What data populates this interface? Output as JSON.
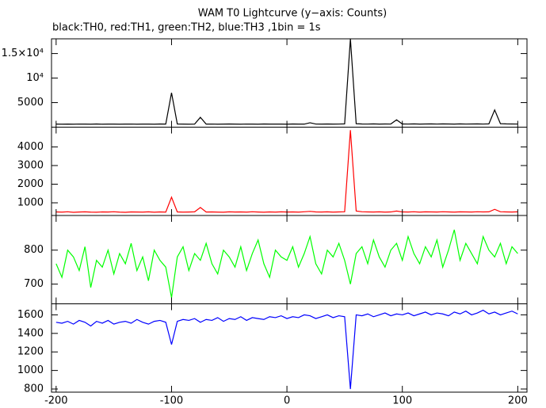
{
  "chart_data": [
    {
      "type": "line",
      "title": "WAM T0 Lightcurve (y−axis: Counts)",
      "subtitle": "black:TH0, red:TH1, green:TH2, blue:TH3 ,1bin = 1s",
      "x": [
        -200,
        -195,
        -190,
        -185,
        -180,
        -175,
        -170,
        -165,
        -160,
        -155,
        -150,
        -145,
        -140,
        -135,
        -130,
        -125,
        -120,
        -115,
        -110,
        -105,
        -100,
        -95,
        -90,
        -85,
        -80,
        -75,
        -70,
        -65,
        -60,
        -55,
        -50,
        -45,
        -40,
        -35,
        -30,
        -25,
        -20,
        -15,
        -10,
        -5,
        0,
        5,
        10,
        15,
        20,
        25,
        30,
        35,
        40,
        45,
        50,
        55,
        60,
        65,
        70,
        75,
        80,
        85,
        90,
        95,
        100,
        105,
        110,
        115,
        120,
        125,
        130,
        135,
        140,
        145,
        150,
        155,
        160,
        165,
        170,
        175,
        180,
        185,
        190,
        195,
        200
      ],
      "color": "#000000",
      "values": [
        620,
        610,
        630,
        600,
        640,
        620,
        610,
        650,
        600,
        620,
        630,
        610,
        620,
        640,
        600,
        630,
        620,
        610,
        650,
        630,
        7000,
        640,
        620,
        610,
        630,
        2000,
        620,
        640,
        610,
        630,
        650,
        620,
        600,
        640,
        630,
        610,
        650,
        620,
        640,
        630,
        610,
        650,
        630,
        620,
        900,
        640,
        630,
        650,
        620,
        640,
        660,
        18000,
        700,
        650,
        640,
        660,
        630,
        650,
        640,
        1500,
        650,
        640,
        660,
        630,
        650,
        670,
        640,
        660,
        650,
        630,
        660,
        640,
        650,
        670,
        640,
        660,
        3500,
        700,
        660,
        650,
        640
      ],
      "ylim": [
        0,
        18000
      ],
      "yticks": [
        {
          "value": 5000,
          "label": "5000"
        },
        {
          "value": 10000,
          "label": "10⁴"
        },
        {
          "value": 15000,
          "label": "1.5×10⁴"
        }
      ]
    },
    {
      "type": "line",
      "color": "#ff0000",
      "values": [
        510,
        500,
        520,
        490,
        505,
        515,
        500,
        495,
        510,
        505,
        520,
        500,
        490,
        510,
        505,
        500,
        515,
        495,
        510,
        500,
        1300,
        510,
        500,
        505,
        515,
        750,
        505,
        510,
        500,
        495,
        515,
        505,
        510,
        500,
        520,
        505,
        495,
        510,
        500,
        515,
        505,
        510,
        500,
        520,
        540,
        510,
        505,
        515,
        500,
        510,
        520,
        4900,
        560,
        520,
        510,
        505,
        515,
        500,
        510,
        560,
        510,
        505,
        520,
        500,
        515,
        510,
        505,
        520,
        510,
        500,
        515,
        510,
        505,
        520,
        510,
        515,
        650,
        520,
        510,
        505,
        515
      ],
      "ylim": [
        320,
        5060
      ],
      "yticks": [
        1000,
        2000,
        3000,
        4000
      ]
    },
    {
      "type": "line",
      "color": "#00ff00",
      "values": [
        760,
        720,
        800,
        780,
        740,
        810,
        690,
        770,
        750,
        800,
        730,
        790,
        760,
        820,
        740,
        780,
        710,
        800,
        770,
        750,
        660,
        780,
        810,
        740,
        790,
        770,
        820,
        760,
        730,
        800,
        780,
        750,
        810,
        740,
        790,
        830,
        760,
        720,
        800,
        780,
        770,
        810,
        750,
        790,
        840,
        760,
        730,
        800,
        780,
        820,
        770,
        700,
        790,
        810,
        760,
        830,
        780,
        750,
        800,
        820,
        770,
        840,
        790,
        760,
        810,
        780,
        830,
        750,
        800,
        860,
        770,
        820,
        790,
        760,
        840,
        800,
        780,
        820,
        760,
        810,
        790
      ],
      "ylim": [
        642,
        902
      ],
      "yticks": [
        700,
        800
      ]
    },
    {
      "type": "line",
      "color": "#0000ff",
      "values": [
        1520,
        1510,
        1530,
        1500,
        1540,
        1520,
        1480,
        1530,
        1510,
        1540,
        1500,
        1520,
        1530,
        1510,
        1550,
        1520,
        1500,
        1530,
        1540,
        1520,
        1280,
        1530,
        1550,
        1540,
        1560,
        1520,
        1550,
        1540,
        1570,
        1530,
        1560,
        1550,
        1580,
        1540,
        1570,
        1560,
        1550,
        1580,
        1570,
        1590,
        1560,
        1580,
        1570,
        1600,
        1590,
        1560,
        1580,
        1600,
        1570,
        1590,
        1580,
        800,
        1600,
        1590,
        1610,
        1580,
        1600,
        1620,
        1590,
        1610,
        1600,
        1620,
        1590,
        1610,
        1630,
        1600,
        1620,
        1610,
        1590,
        1630,
        1610,
        1640,
        1600,
        1620,
        1650,
        1610,
        1630,
        1600,
        1620,
        1640,
        1610
      ],
      "ylim": [
        766,
        1719
      ],
      "yticks": [
        800,
        1000,
        1200,
        1400,
        1600
      ],
      "xlim": [
        -204,
        208
      ],
      "xticks": [
        -200,
        -100,
        0,
        100,
        200
      ]
    }
  ]
}
